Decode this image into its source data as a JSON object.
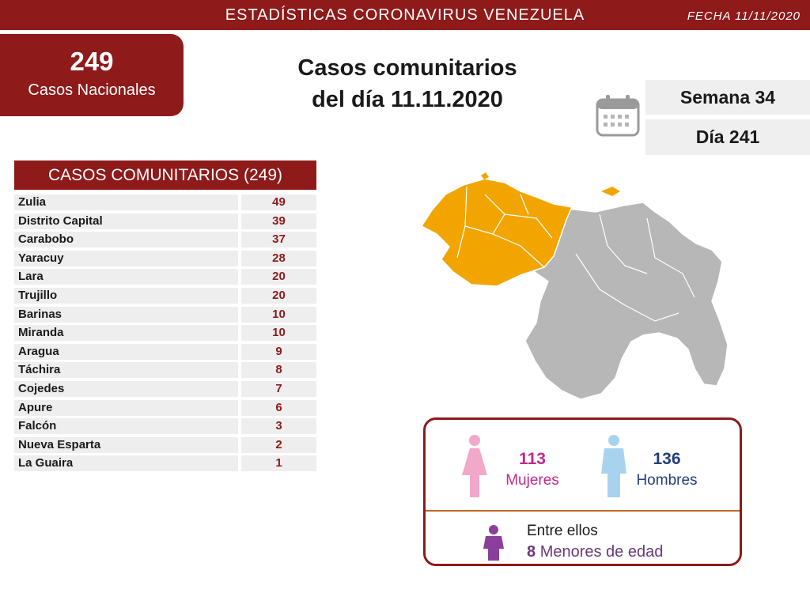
{
  "header": {
    "title": "ESTADÍSTICAS CORONAVIRUS VENEZUELA",
    "date": "FECHA 11/11/2020"
  },
  "national": {
    "count": "249",
    "label": "Casos Nacionales"
  },
  "headline": {
    "line1": "Casos comunitarios",
    "line2": "del día 11.11.2020"
  },
  "week": "Semana 34",
  "day": "Día 241",
  "table": {
    "title": "CASOS COMUNITARIOS (249)",
    "rows": [
      {
        "state": "Zulia",
        "cases": "49"
      },
      {
        "state": "Distrito Capital",
        "cases": "39"
      },
      {
        "state": "Carabobo",
        "cases": "37"
      },
      {
        "state": "Yaracuy",
        "cases": "28"
      },
      {
        "state": "Lara",
        "cases": "20"
      },
      {
        "state": "Trujillo",
        "cases": "20"
      },
      {
        "state": "Barinas",
        "cases": "10"
      },
      {
        "state": "Miranda",
        "cases": "10"
      },
      {
        "state": "Aragua",
        "cases": "9"
      },
      {
        "state": "Táchira",
        "cases": "8"
      },
      {
        "state": "Cojedes",
        "cases": "7"
      },
      {
        "state": "Apure",
        "cases": "6"
      },
      {
        "state": "Falcón",
        "cases": "3"
      },
      {
        "state": "Nueva Esparta",
        "cases": "2"
      },
      {
        "state": "La Guaira",
        "cases": "1"
      }
    ]
  },
  "gender": {
    "female_count": "113",
    "female_label": "Mujeres",
    "male_count": "136",
    "male_label": "Hombres",
    "among": "Entre ellos",
    "minors_count": "8",
    "minors_label": "Menores de edad"
  },
  "colors": {
    "brand": "#8e1a1a",
    "affected": "#f2a500",
    "unaffected": "#b7b7b7",
    "female": "#c02a8a",
    "male": "#243d7a",
    "minors": "#6a3a7a"
  },
  "icons": {
    "calendar": "calendar-icon",
    "female": "female-figure-icon",
    "male": "male-figure-icon",
    "child": "child-figure-icon"
  }
}
